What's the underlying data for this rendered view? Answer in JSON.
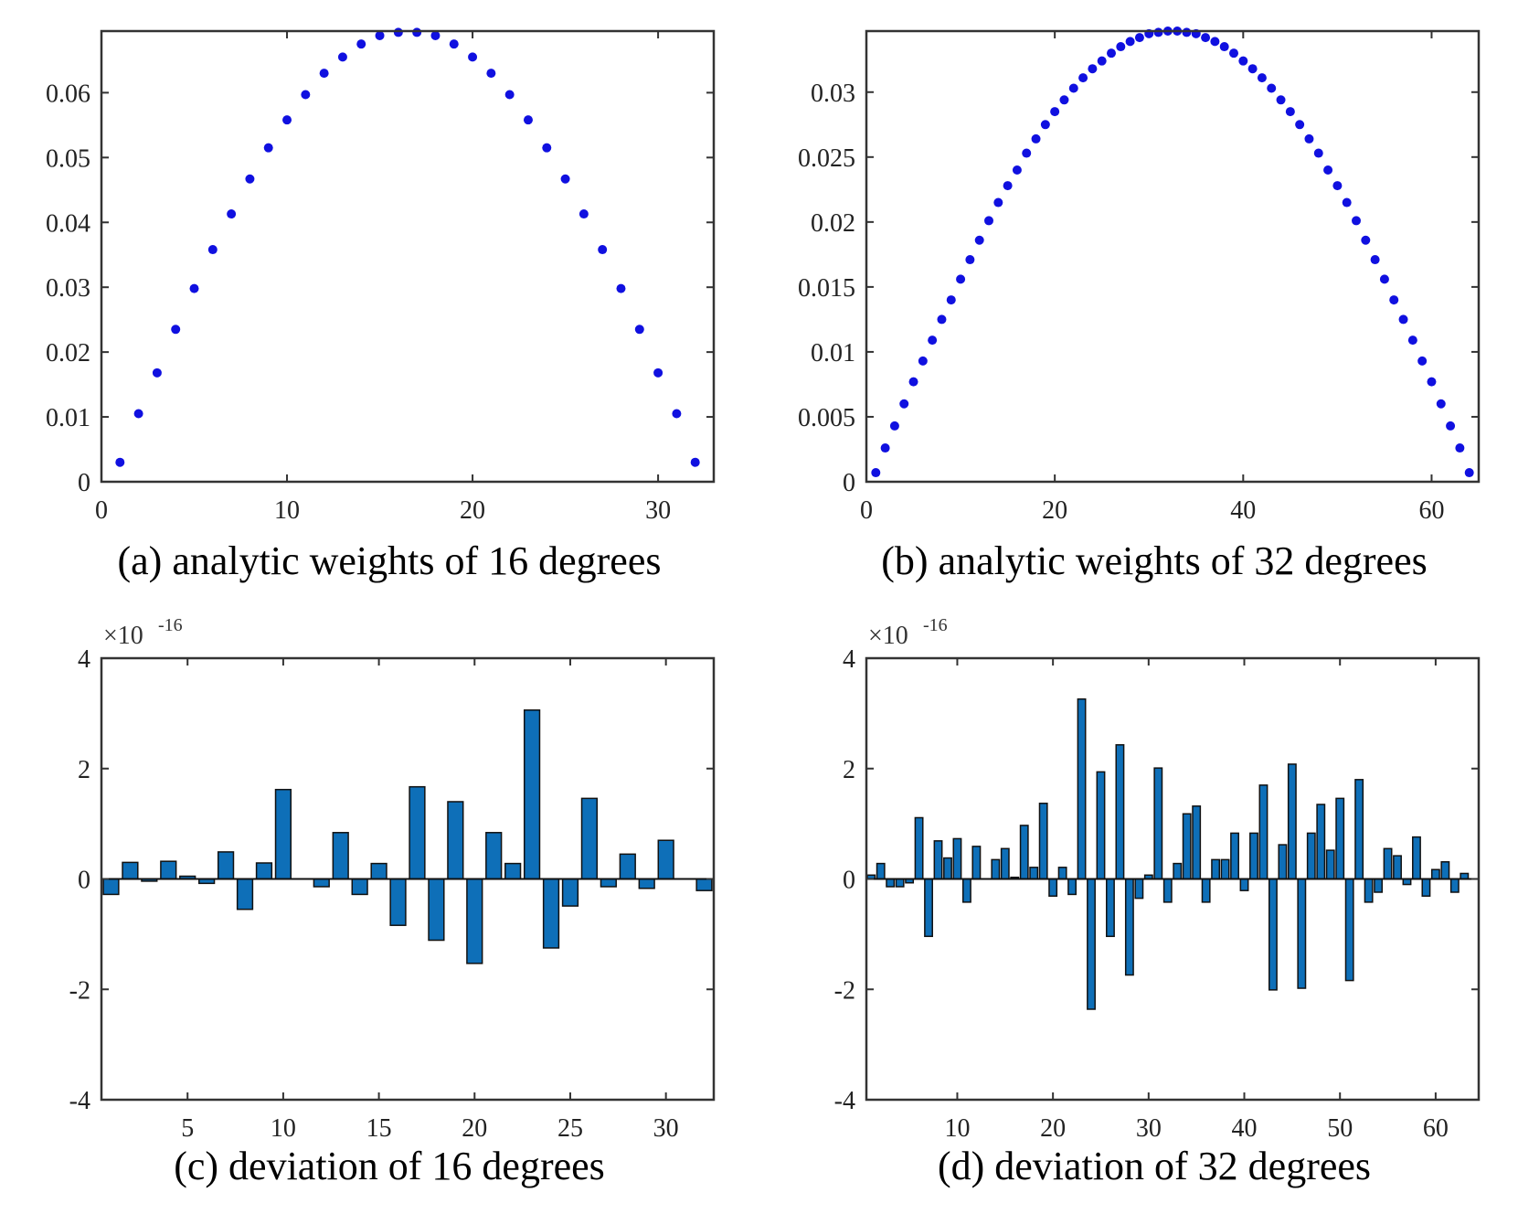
{
  "chart_data": [
    {
      "id": "a",
      "type": "scatter",
      "caption": "(a) analytic weights of 16 degrees",
      "xlim": [
        0,
        33
      ],
      "ylim": [
        0,
        0.0695
      ],
      "xticks": [
        0,
        10,
        20,
        30
      ],
      "xtick_labels": [
        "0",
        "10",
        "20",
        "30"
      ],
      "yticks": [
        0,
        0.01,
        0.02,
        0.03,
        0.04,
        0.05,
        0.06
      ],
      "ytick_labels": [
        "0",
        "0.01",
        "0.02",
        "0.03",
        "0.04",
        "0.05",
        "0.06"
      ],
      "grid": false,
      "color": "#1010e0",
      "x": [
        1,
        2,
        3,
        4,
        5,
        6,
        7,
        8,
        9,
        10,
        11,
        12,
        13,
        14,
        15,
        16,
        17,
        18,
        19,
        20,
        21,
        22,
        23,
        24,
        25,
        26,
        27,
        28,
        29,
        30,
        31,
        32
      ],
      "y": [
        0.003,
        0.0105,
        0.0168,
        0.0235,
        0.0298,
        0.0358,
        0.0413,
        0.0467,
        0.0515,
        0.0558,
        0.0597,
        0.063,
        0.0655,
        0.0675,
        0.0688,
        0.0693,
        0.0693,
        0.0688,
        0.0675,
        0.0655,
        0.063,
        0.0597,
        0.0558,
        0.0515,
        0.0467,
        0.0413,
        0.0358,
        0.0298,
        0.0235,
        0.0168,
        0.0105,
        0.003
      ]
    },
    {
      "id": "b",
      "type": "scatter",
      "caption": "(b) analytic weights of 32 degrees",
      "xlim": [
        0,
        65
      ],
      "ylim": [
        0,
        0.0347
      ],
      "xticks": [
        0,
        20,
        40,
        60
      ],
      "xtick_labels": [
        "0",
        "20",
        "40",
        "60"
      ],
      "yticks": [
        0,
        0.005,
        0.01,
        0.015,
        0.02,
        0.025,
        0.03
      ],
      "ytick_labels": [
        "0",
        "0.005",
        "0.01",
        "0.015",
        "0.02",
        "0.025",
        "0.03"
      ],
      "grid": false,
      "color": "#1010e0",
      "x": [
        1,
        2,
        3,
        4,
        5,
        6,
        7,
        8,
        9,
        10,
        11,
        12,
        13,
        14,
        15,
        16,
        17,
        18,
        19,
        20,
        21,
        22,
        23,
        24,
        25,
        26,
        27,
        28,
        29,
        30,
        31,
        32,
        33,
        34,
        35,
        36,
        37,
        38,
        39,
        40,
        41,
        42,
        43,
        44,
        45,
        46,
        47,
        48,
        49,
        50,
        51,
        52,
        53,
        54,
        55,
        56,
        57,
        58,
        59,
        60,
        61,
        62,
        63,
        64
      ],
      "y": [
        0.0007,
        0.0026,
        0.0043,
        0.006,
        0.0077,
        0.0093,
        0.0109,
        0.0125,
        0.014,
        0.0156,
        0.0171,
        0.0186,
        0.0201,
        0.0215,
        0.0228,
        0.024,
        0.0253,
        0.0264,
        0.0275,
        0.0285,
        0.0294,
        0.0303,
        0.0311,
        0.0318,
        0.0324,
        0.033,
        0.0335,
        0.0339,
        0.0342,
        0.0345,
        0.0346,
        0.0347,
        0.0347,
        0.0346,
        0.0345,
        0.0342,
        0.0339,
        0.0335,
        0.033,
        0.0324,
        0.0318,
        0.0311,
        0.0303,
        0.0294,
        0.0285,
        0.0275,
        0.0264,
        0.0253,
        0.024,
        0.0228,
        0.0215,
        0.0201,
        0.0186,
        0.0171,
        0.0156,
        0.014,
        0.0125,
        0.0109,
        0.0093,
        0.0077,
        0.006,
        0.0043,
        0.0026,
        0.0007
      ]
    },
    {
      "id": "c",
      "type": "bar",
      "caption": "(c) deviation of 16 degrees",
      "exponent_base": "×10",
      "exponent_power": "-16",
      "xlim": [
        0.5,
        32.5
      ],
      "ylim": [
        -4,
        4
      ],
      "xticks": [
        5,
        10,
        15,
        20,
        25,
        30
      ],
      "xtick_labels": [
        "5",
        "10",
        "15",
        "20",
        "25",
        "30"
      ],
      "yticks": [
        -4,
        -2,
        0,
        2,
        4
      ],
      "ytick_labels": [
        "-4",
        "-2",
        "0",
        "2",
        "4"
      ],
      "grid": false,
      "color": "#0e6fb8",
      "x": [
        1,
        2,
        3,
        4,
        5,
        6,
        7,
        8,
        9,
        10,
        11,
        12,
        13,
        14,
        15,
        16,
        17,
        18,
        19,
        20,
        21,
        22,
        23,
        24,
        25,
        26,
        27,
        28,
        29,
        30,
        31,
        32
      ],
      "values": [
        -0.28,
        0.3,
        -0.04,
        0.32,
        0.05,
        -0.08,
        0.49,
        -0.55,
        0.29,
        1.62,
        0.0,
        -0.14,
        0.84,
        -0.28,
        0.28,
        -0.84,
        1.67,
        -1.11,
        1.4,
        -1.53,
        0.84,
        0.28,
        3.06,
        -1.25,
        -0.49,
        1.46,
        -0.14,
        0.45,
        -0.17,
        0.7,
        0.0,
        -0.21
      ]
    },
    {
      "id": "d",
      "type": "bar",
      "caption": "(d) deviation of 32 degrees",
      "exponent_base": "×10",
      "exponent_power": "-16",
      "xlim": [
        0.5,
        64.5
      ],
      "ylim": [
        -4,
        4
      ],
      "xticks": [
        10,
        20,
        30,
        40,
        50,
        60
      ],
      "xtick_labels": [
        "10",
        "20",
        "30",
        "40",
        "50",
        "60"
      ],
      "yticks": [
        -4,
        -2,
        0,
        2,
        4
      ],
      "ytick_labels": [
        "-4",
        "-2",
        "0",
        "2",
        "4"
      ],
      "grid": false,
      "color": "#0e6fb8",
      "x": [
        1,
        2,
        3,
        4,
        5,
        6,
        7,
        8,
        9,
        10,
        11,
        12,
        13,
        14,
        15,
        16,
        17,
        18,
        19,
        20,
        21,
        22,
        23,
        24,
        25,
        26,
        27,
        28,
        29,
        30,
        31,
        32,
        33,
        34,
        35,
        36,
        37,
        38,
        39,
        40,
        41,
        42,
        43,
        44,
        45,
        46,
        47,
        48,
        49,
        50,
        51,
        52,
        53,
        54,
        55,
        56,
        57,
        58,
        59,
        60,
        61,
        62,
        63,
        64
      ],
      "values": [
        0.07,
        0.28,
        -0.14,
        -0.14,
        -0.07,
        1.11,
        -1.04,
        0.69,
        0.38,
        0.73,
        -0.42,
        0.59,
        0.0,
        0.35,
        0.55,
        0.03,
        0.97,
        0.21,
        1.37,
        -0.31,
        0.21,
        -0.28,
        3.26,
        -2.36,
        1.94,
        -1.04,
        2.43,
        -1.74,
        -0.35,
        0.07,
        2.01,
        -0.42,
        0.28,
        1.18,
        1.32,
        -0.42,
        0.35,
        0.35,
        0.83,
        -0.21,
        0.83,
        1.7,
        -2.01,
        0.62,
        2.08,
        -1.98,
        0.83,
        1.35,
        0.52,
        1.46,
        -1.84,
        1.8,
        -0.42,
        -0.24,
        0.55,
        0.42,
        -0.1,
        0.76,
        -0.31,
        0.17,
        0.31,
        -0.24,
        0.1,
        0.0
      ]
    }
  ]
}
